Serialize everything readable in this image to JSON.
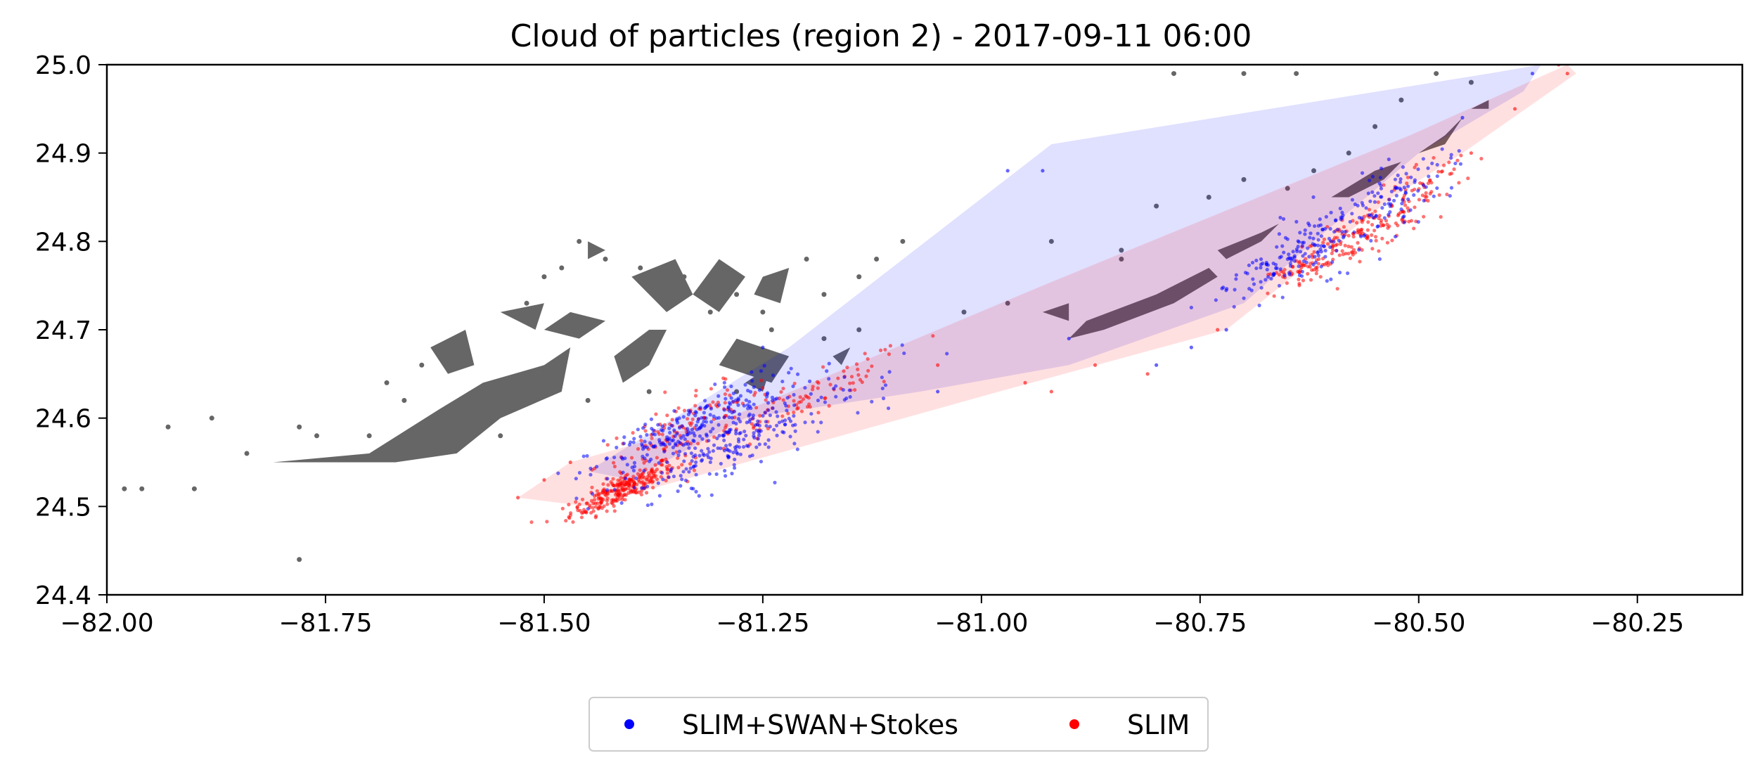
{
  "chart_data": {
    "type": "scatter",
    "title": "Cloud of particles (region 2) - 2017-09-11 06:00",
    "xlabel": "",
    "ylabel": "",
    "xlim": [
      -82.0,
      -80.13
    ],
    "ylim": [
      24.4,
      25.0
    ],
    "x_ticks": [
      -82.0,
      -81.75,
      -81.5,
      -81.25,
      -81.0,
      -80.75,
      -80.5,
      -80.25
    ],
    "x_tick_labels": [
      "−82.00",
      "−81.75",
      "−81.50",
      "−81.25",
      "−81.00",
      "−80.75",
      "−80.50",
      "−80.25"
    ],
    "y_ticks": [
      24.4,
      24.5,
      24.6,
      24.7,
      24.8,
      24.9,
      25.0
    ],
    "y_tick_labels": [
      "24.4",
      "24.5",
      "24.6",
      "24.7",
      "24.8",
      "24.9",
      "25.0"
    ],
    "grid": false,
    "legend_position": "bottom-center",
    "series": [
      {
        "name": "SLIM+SWAN+Stokes",
        "color": "#0000ff",
        "hull_color": "#e5e5ff",
        "hull": [
          [
            -81.45,
            24.54
          ],
          [
            -81.22,
            24.68
          ],
          [
            -80.92,
            24.91
          ],
          [
            -80.42,
            24.99
          ],
          [
            -80.36,
            25.0
          ],
          [
            -80.38,
            24.97
          ],
          [
            -80.5,
            24.9
          ],
          [
            -80.62,
            24.8
          ],
          [
            -80.7,
            24.73
          ],
          [
            -80.9,
            24.66
          ],
          [
            -81.07,
            24.63
          ],
          [
            -81.27,
            24.6
          ],
          [
            -81.4,
            24.53
          ]
        ],
        "clusters": [
          {
            "cx": -81.34,
            "cy": 24.585,
            "sx": 0.055,
            "sy": 0.016,
            "n": 220
          },
          {
            "cx": -81.3,
            "cy": 24.56,
            "sx": 0.05,
            "sy": 0.012,
            "n": 120
          },
          {
            "cx": -81.24,
            "cy": 24.6,
            "sx": 0.05,
            "sy": 0.02,
            "n": 60
          },
          {
            "cx": -81.16,
            "cy": 24.62,
            "sx": 0.06,
            "sy": 0.02,
            "n": 30
          },
          {
            "cx": -80.6,
            "cy": 24.805,
            "sx": 0.05,
            "sy": 0.02,
            "n": 140
          },
          {
            "cx": -80.67,
            "cy": 24.765,
            "sx": 0.035,
            "sy": 0.015,
            "n": 60
          },
          {
            "cx": -80.52,
            "cy": 24.86,
            "sx": 0.03,
            "sy": 0.015,
            "n": 60
          }
        ],
        "scatter_points": [
          [
            -80.93,
            24.88
          ],
          [
            -80.97,
            24.88
          ],
          [
            -81.25,
            24.68
          ],
          [
            -80.9,
            24.69
          ],
          [
            -80.8,
            24.66
          ],
          [
            -80.76,
            24.68
          ],
          [
            -81.05,
            24.63
          ],
          [
            -80.37,
            24.99
          ],
          [
            -80.45,
            24.94
          ],
          [
            -80.72,
            24.7
          ]
        ]
      },
      {
        "name": "SLIM",
        "color": "#ff0000",
        "hull_color": "#ffe5e5",
        "hull": [
          [
            -81.53,
            24.51
          ],
          [
            -81.47,
            24.55
          ],
          [
            -81.29,
            24.6
          ],
          [
            -80.93,
            24.75
          ],
          [
            -80.51,
            24.92
          ],
          [
            -80.33,
            25.0
          ],
          [
            -80.32,
            24.99
          ],
          [
            -80.45,
            24.9
          ],
          [
            -80.53,
            24.85
          ],
          [
            -80.72,
            24.7
          ],
          [
            -80.98,
            24.63
          ],
          [
            -81.45,
            24.5
          ]
        ],
        "clusters": [
          {
            "cx": -81.41,
            "cy": 24.52,
            "sx": 0.03,
            "sy": 0.008,
            "n": 260
          },
          {
            "cx": -81.34,
            "cy": 24.59,
            "sx": 0.05,
            "sy": 0.015,
            "n": 120
          },
          {
            "cx": -81.2,
            "cy": 24.62,
            "sx": 0.06,
            "sy": 0.012,
            "n": 90
          },
          {
            "cx": -80.57,
            "cy": 24.805,
            "sx": 0.04,
            "sy": 0.012,
            "n": 130
          },
          {
            "cx": -80.63,
            "cy": 24.77,
            "sx": 0.025,
            "sy": 0.01,
            "n": 50
          },
          {
            "cx": -80.5,
            "cy": 24.86,
            "sx": 0.03,
            "sy": 0.015,
            "n": 60
          }
        ],
        "scatter_points": [
          [
            -81.53,
            24.51
          ],
          [
            -81.5,
            24.53
          ],
          [
            -81.47,
            24.55
          ],
          [
            -80.95,
            24.64
          ],
          [
            -80.87,
            24.66
          ],
          [
            -80.92,
            24.63
          ],
          [
            -80.81,
            24.65
          ],
          [
            -80.73,
            24.7
          ],
          [
            -81.05,
            24.66
          ],
          [
            -80.33,
            24.99
          ],
          [
            -80.34,
            25.0
          ],
          [
            -80.39,
            24.95
          ],
          [
            -80.44,
            24.9
          ]
        ]
      }
    ],
    "land": {
      "color": "#666666",
      "note_shapes": [
        [
          [
            -81.81,
            24.55
          ],
          [
            -81.7,
            24.56
          ],
          [
            -81.62,
            24.61
          ],
          [
            -81.57,
            24.64
          ],
          [
            -81.5,
            24.66
          ],
          [
            -81.47,
            24.68
          ],
          [
            -81.48,
            24.63
          ],
          [
            -81.55,
            24.6
          ],
          [
            -81.6,
            24.56
          ],
          [
            -81.67,
            24.55
          ],
          [
            -81.73,
            24.55
          ],
          [
            -81.8,
            24.55
          ]
        ],
        [
          [
            -81.42,
            24.67
          ],
          [
            -81.38,
            24.7
          ],
          [
            -81.36,
            24.7
          ],
          [
            -81.38,
            24.66
          ],
          [
            -81.41,
            24.64
          ]
        ],
        [
          [
            -81.4,
            24.76
          ],
          [
            -81.35,
            24.78
          ],
          [
            -81.33,
            24.74
          ],
          [
            -81.36,
            24.72
          ]
        ],
        [
          [
            -81.3,
            24.78
          ],
          [
            -81.27,
            24.76
          ],
          [
            -81.3,
            24.72
          ],
          [
            -81.33,
            24.74
          ]
        ],
        [
          [
            -81.25,
            24.76
          ],
          [
            -81.22,
            24.77
          ],
          [
            -81.23,
            24.73
          ],
          [
            -81.26,
            24.74
          ]
        ],
        [
          [
            -81.28,
            24.69
          ],
          [
            -81.3,
            24.66
          ],
          [
            -81.24,
            24.64
          ],
          [
            -81.22,
            24.67
          ]
        ],
        [
          [
            -81.5,
            24.7
          ],
          [
            -81.47,
            24.72
          ],
          [
            -81.43,
            24.71
          ],
          [
            -81.46,
            24.69
          ]
        ],
        [
          [
            -81.63,
            24.68
          ],
          [
            -81.59,
            24.7
          ],
          [
            -81.58,
            24.66
          ],
          [
            -81.61,
            24.65
          ]
        ],
        [
          [
            -81.55,
            24.72
          ],
          [
            -81.5,
            24.73
          ],
          [
            -81.51,
            24.7
          ]
        ],
        [
          [
            -81.45,
            24.8
          ],
          [
            -81.43,
            24.79
          ],
          [
            -81.45,
            24.78
          ]
        ],
        [
          [
            -80.88,
            24.71
          ],
          [
            -80.8,
            24.74
          ],
          [
            -80.74,
            24.77
          ],
          [
            -80.73,
            24.76
          ],
          [
            -80.78,
            24.73
          ],
          [
            -80.86,
            24.7
          ],
          [
            -80.9,
            24.69
          ]
        ],
        [
          [
            -80.93,
            24.72
          ],
          [
            -80.9,
            24.73
          ],
          [
            -80.9,
            24.71
          ]
        ],
        [
          [
            -80.73,
            24.79
          ],
          [
            -80.68,
            24.81
          ],
          [
            -80.66,
            24.82
          ],
          [
            -80.68,
            24.8
          ],
          [
            -80.72,
            24.78
          ]
        ],
        [
          [
            -80.6,
            24.85
          ],
          [
            -80.55,
            24.88
          ],
          [
            -80.52,
            24.89
          ],
          [
            -80.54,
            24.87
          ],
          [
            -80.58,
            24.85
          ]
        ],
        [
          [
            -80.5,
            24.9
          ],
          [
            -80.47,
            24.92
          ],
          [
            -80.45,
            24.94
          ],
          [
            -80.47,
            24.91
          ]
        ],
        [
          [
            -80.44,
            24.95
          ],
          [
            -80.42,
            24.96
          ],
          [
            -80.42,
            24.95
          ]
        ],
        [
          [
            -81.27,
            24.64
          ],
          [
            -81.24,
            24.66
          ],
          [
            -81.25,
            24.63
          ]
        ],
        [
          [
            -81.17,
            24.67
          ],
          [
            -81.15,
            24.68
          ],
          [
            -81.16,
            24.66
          ]
        ]
      ],
      "islets": [
        [
          -81.98,
          24.52
        ],
        [
          -81.96,
          24.52
        ],
        [
          -81.93,
          24.59
        ],
        [
          -81.88,
          24.6
        ],
        [
          -81.84,
          24.56
        ],
        [
          -81.78,
          24.59
        ],
        [
          -81.76,
          24.58
        ],
        [
          -81.68,
          24.64
        ],
        [
          -81.66,
          24.62
        ],
        [
          -81.64,
          24.66
        ],
        [
          -81.52,
          24.73
        ],
        [
          -81.5,
          24.76
        ],
        [
          -81.48,
          24.77
        ],
        [
          -81.46,
          24.8
        ],
        [
          -81.43,
          24.78
        ],
        [
          -81.39,
          24.77
        ],
        [
          -81.37,
          24.74
        ],
        [
          -81.34,
          24.76
        ],
        [
          -81.31,
          24.72
        ],
        [
          -81.28,
          24.74
        ],
        [
          -81.25,
          24.72
        ],
        [
          -81.2,
          24.78
        ],
        [
          -81.18,
          24.74
        ],
        [
          -81.14,
          24.76
        ],
        [
          -81.12,
          24.78
        ],
        [
          -81.09,
          24.8
        ],
        [
          -81.14,
          24.7
        ],
        [
          -81.18,
          24.69
        ],
        [
          -81.24,
          24.7
        ],
        [
          -81.28,
          24.63
        ],
        [
          -81.38,
          24.63
        ],
        [
          -81.45,
          24.62
        ],
        [
          -81.55,
          24.58
        ],
        [
          -81.62,
          24.6
        ],
        [
          -81.7,
          24.58
        ],
        [
          -81.9,
          24.52
        ],
        [
          -81.78,
          24.44
        ],
        [
          -80.92,
          24.8
        ],
        [
          -80.84,
          24.79
        ],
        [
          -80.8,
          24.84
        ],
        [
          -80.74,
          24.85
        ],
        [
          -80.7,
          24.87
        ],
        [
          -80.65,
          24.86
        ],
        [
          -80.62,
          24.88
        ],
        [
          -80.58,
          24.9
        ],
        [
          -80.55,
          24.93
        ],
        [
          -80.52,
          24.96
        ],
        [
          -80.48,
          24.99
        ],
        [
          -80.44,
          24.98
        ],
        [
          -80.64,
          24.99
        ],
        [
          -80.7,
          24.99
        ],
        [
          -80.78,
          24.99
        ],
        [
          -80.84,
          24.78
        ],
        [
          -80.97,
          24.73
        ],
        [
          -81.02,
          24.72
        ]
      ]
    }
  }
}
